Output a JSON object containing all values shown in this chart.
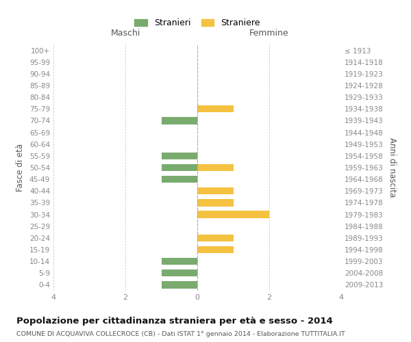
{
  "age_groups": [
    "100+",
    "95-99",
    "90-94",
    "85-89",
    "80-84",
    "75-79",
    "70-74",
    "65-69",
    "60-64",
    "55-59",
    "50-54",
    "45-49",
    "40-44",
    "35-39",
    "30-34",
    "25-29",
    "20-24",
    "15-19",
    "10-14",
    "5-9",
    "0-4"
  ],
  "birth_years": [
    "≤ 1913",
    "1914-1918",
    "1919-1923",
    "1924-1928",
    "1929-1933",
    "1934-1938",
    "1939-1943",
    "1944-1948",
    "1949-1953",
    "1954-1958",
    "1959-1963",
    "1964-1968",
    "1969-1973",
    "1974-1978",
    "1979-1983",
    "1984-1988",
    "1989-1993",
    "1994-1998",
    "1999-2003",
    "2004-2008",
    "2009-2013"
  ],
  "maschi": [
    0,
    0,
    0,
    0,
    0,
    0,
    1,
    0,
    0,
    1,
    1,
    1,
    0,
    0,
    0,
    0,
    0,
    0,
    1,
    1,
    1
  ],
  "femmine": [
    0,
    0,
    0,
    0,
    0,
    1,
    0,
    0,
    0,
    0,
    1,
    0,
    1,
    1,
    2,
    0,
    1,
    1,
    0,
    0,
    0
  ],
  "color_maschi": "#7aab6e",
  "color_femmine": "#f5c141",
  "title": "Popolazione per cittadinanza straniera per età e sesso - 2014",
  "subtitle": "COMUNE DI ACQUAVIVA COLLECROCE (CB) - Dati ISTAT 1° gennaio 2014 - Elaborazione TUTTITALIA.IT",
  "ylabel_left": "Fasce di età",
  "ylabel_right": "Anni di nascita",
  "xlabel_maschi": "Maschi",
  "xlabel_femmine": "Femmine",
  "legend_maschi": "Stranieri",
  "legend_femmine": "Straniere",
  "xlim": 4,
  "background_color": "#ffffff",
  "grid_color": "#cccccc"
}
